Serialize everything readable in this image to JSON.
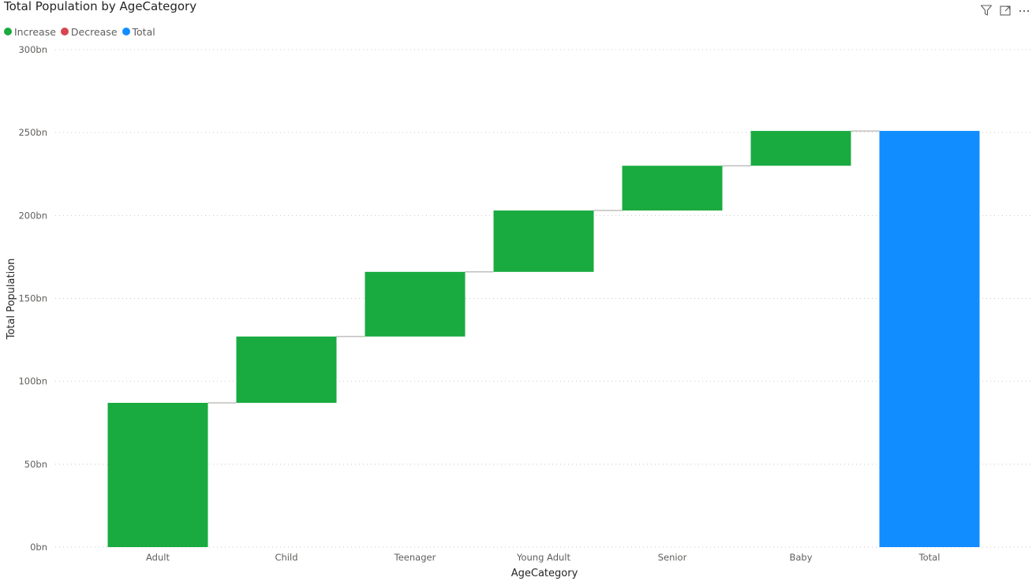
{
  "title": "Total Population by AgeCategory",
  "legend": {
    "items": [
      {
        "label": "Increase",
        "color": "#1aab40"
      },
      {
        "label": "Decrease",
        "color": "#d64550"
      },
      {
        "label": "Total",
        "color": "#118dff"
      }
    ]
  },
  "toolbar": {
    "icons": [
      "filter-icon",
      "focus-mode-icon",
      "more-options-icon"
    ]
  },
  "chart_data": {
    "type": "waterfall",
    "title": "Total Population by AgeCategory",
    "xlabel": "AgeCategory",
    "ylabel": "Total Population",
    "ylim": [
      0,
      300
    ],
    "y_unit_suffix": "bn",
    "y_ticks": [
      "0bn",
      "50bn",
      "100bn",
      "150bn",
      "200bn",
      "250bn",
      "300bn"
    ],
    "y_tick_values": [
      0,
      50,
      100,
      150,
      200,
      250,
      300
    ],
    "grid": true,
    "legend_position": "top-left",
    "categories": [
      "Adult",
      "Child",
      "Teenager",
      "Young Adult",
      "Senior",
      "Baby",
      "Total"
    ],
    "values": [
      87,
      40,
      39,
      37,
      27,
      21,
      251
    ],
    "kinds": [
      "increase",
      "increase",
      "increase",
      "increase",
      "increase",
      "increase",
      "total"
    ],
    "colors": {
      "increase": "#1aab40",
      "decrease": "#d64550",
      "total": "#118dff"
    }
  }
}
